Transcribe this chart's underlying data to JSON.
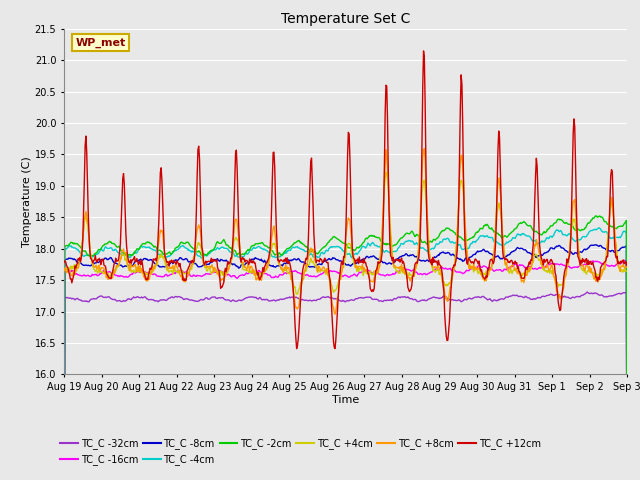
{
  "title": "Temperature Set C",
  "xlabel": "Time",
  "ylabel": "Temperature (C)",
  "ylim": [
    16.0,
    21.5
  ],
  "yticks": [
    16.0,
    16.5,
    17.0,
    17.5,
    18.0,
    18.5,
    19.0,
    19.5,
    20.0,
    20.5,
    21.0,
    21.5
  ],
  "xtick_labels": [
    "Aug 19",
    "Aug 20",
    "Aug 21",
    "Aug 22",
    "Aug 23",
    "Aug 24",
    "Aug 25",
    "Aug 26",
    "Aug 27",
    "Aug 28",
    "Aug 29",
    "Aug 30",
    "Aug 31",
    "Sep 1",
    "Sep 2",
    "Sep 3"
  ],
  "legend_label": "WP_met",
  "legend_bg": "#ffffcc",
  "legend_border": "#ccaa00",
  "series_colors": {
    "TC_C -32cm": "#9933cc",
    "TC_C -16cm": "#ff00ff",
    "TC_C -8cm": "#0000cc",
    "TC_C -4cm": "#00cccc",
    "TC_C -2cm": "#00cc00",
    "TC_C +4cm": "#cccc00",
    "TC_C +8cm": "#ff9900",
    "TC_C +12cm": "#cc0000"
  },
  "bg_color": "#e8e8e8",
  "grid_color": "#ffffff",
  "linewidth": 1.0,
  "n_days": 15,
  "pts_per_day": 48
}
